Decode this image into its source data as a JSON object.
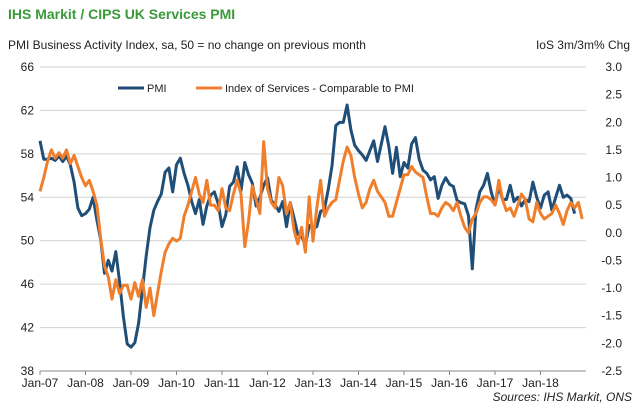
{
  "header": {
    "title": "IHS Markit / CIPS UK Services PMI",
    "left_axis_label": "PMI Business Activity Index, sa, 50 = no change on previous month",
    "right_axis_label": "IoS 3m/3m% Chg",
    "source": "Sources: IHS Markit, ONS"
  },
  "chart_data": {
    "type": "line",
    "x_ticks": [
      "Jan-07",
      "Jan-08",
      "Jan-09",
      "Jan-10",
      "Jan-11",
      "Jan-12",
      "Jan-13",
      "Jan-14",
      "Jan-15",
      "Jan-16",
      "Jan-17",
      "Jan-18"
    ],
    "y_left": {
      "range": [
        38,
        66
      ],
      "ticks": [
        "38",
        "42",
        "46",
        "50",
        "54",
        "58",
        "62",
        "66"
      ]
    },
    "y_right": {
      "range": [
        -2.5,
        3.0
      ],
      "ticks": [
        "-2.5",
        "-2.0",
        "-1.5",
        "-1.0",
        "-0.5",
        "0.0",
        "0.5",
        "1.0",
        "1.5",
        "2.0",
        "2.5",
        "3.0"
      ]
    },
    "legend_position": "top-left",
    "grid": "horizontal",
    "series": [
      {
        "name": "PMI",
        "axis": "left",
        "color": "#1f4e79",
        "start": "Jan-07",
        "values": [
          59.2,
          57.5,
          57.5,
          57.6,
          57.4,
          57.8,
          57.3,
          57.8,
          57.0,
          55.4,
          53.0,
          52.3,
          52.5,
          52.9,
          54.0,
          51.9,
          50.1,
          47.0,
          48.2,
          47.2,
          49.0,
          46.2,
          43.0,
          40.5,
          40.2,
          40.6,
          42.4,
          45.5,
          48.6,
          51.2,
          52.8,
          53.6,
          54.3,
          56.3,
          56.7,
          54.5,
          57.0,
          57.6,
          56.2,
          55.1,
          53.6,
          52.5,
          53.8,
          51.5,
          53.2,
          54.2,
          54.5,
          53.4,
          51.3,
          52.4,
          55.0,
          55.4,
          56.8,
          54.6,
          57.2,
          56.1,
          55.3,
          53.2,
          54.0,
          55.1,
          55.8,
          53.7,
          53.3,
          52.7,
          53.6,
          51.3,
          53.5,
          52.1,
          50.6,
          50.4,
          49.6,
          51.4,
          51.1,
          51.3,
          52.7,
          52.9,
          54.7,
          56.9,
          60.6,
          60.9,
          60.9,
          62.5,
          60.2,
          58.8,
          58.3,
          57.9,
          57.4,
          58.3,
          59.2,
          57.3,
          58.9,
          60.5,
          58.7,
          56.2,
          58.6,
          55.9,
          57.2,
          56.7,
          58.9,
          59.5,
          57.5,
          56.5,
          56.2,
          55.6,
          55.9,
          53.9,
          55.1,
          55.8,
          55.2,
          55.0,
          53.7,
          53.5,
          53.4,
          52.3,
          47.4,
          52.9,
          54.5,
          55.1,
          56.2,
          54.5,
          53.3,
          55.0,
          53.8,
          53.8,
          55.1,
          53.6,
          54.0,
          53.2,
          53.8,
          53.6,
          55.4,
          54.0,
          53.0,
          54.2,
          54.5,
          52.8,
          54.0,
          55.1,
          54.0,
          54.2,
          53.9,
          52.5
        ]
      },
      {
        "name": "Index of Services - Comparable to PMI",
        "axis": "right",
        "color": "#f07f2d",
        "start": "Jan-07",
        "values": [
          0.75,
          1.0,
          1.3,
          1.5,
          1.35,
          1.45,
          1.35,
          1.5,
          1.25,
          1.4,
          1.2,
          1.0,
          0.85,
          0.95,
          0.75,
          0.5,
          -0.1,
          -0.6,
          -0.8,
          -1.2,
          -0.85,
          -1.1,
          -0.95,
          -0.95,
          -1.2,
          -0.9,
          -1.15,
          -0.85,
          -1.35,
          -1.0,
          -1.5,
          -1.1,
          -0.7,
          -0.35,
          -0.2,
          -0.1,
          -0.15,
          -0.1,
          0.3,
          0.5,
          0.75,
          1.0,
          0.7,
          0.55,
          0.95,
          0.5,
          0.5,
          0.4,
          0.8,
          0.45,
          0.4,
          0.7,
          0.95,
          0.7,
          -0.25,
          0.2,
          0.85,
          0.6,
          0.35,
          1.65,
          0.8,
          0.55,
          0.45,
          1.0,
          0.85,
          0.35,
          0.55,
          0.05,
          -0.2,
          0.1,
          -0.35,
          0.65,
          -0.15,
          0.45,
          0.95,
          0.3,
          0.45,
          0.55,
          0.6,
          0.95,
          1.3,
          1.55,
          1.4,
          1.0,
          0.7,
          0.45,
          0.55,
          0.8,
          0.95,
          0.75,
          0.65,
          0.55,
          0.3,
          0.3,
          0.55,
          0.8,
          1.05,
          1.05,
          1.2,
          1.1,
          1.05,
          1.0,
          0.65,
          0.35,
          0.35,
          0.3,
          0.45,
          0.55,
          0.5,
          0.4,
          0.55,
          0.3,
          0.1,
          0.0,
          0.25,
          0.35,
          0.55,
          0.65,
          0.65,
          0.6,
          0.5,
          0.95,
          0.6,
          0.4,
          0.45,
          0.3,
          0.5,
          0.7,
          0.6,
          0.25,
          0.2,
          0.55,
          0.35,
          0.25,
          0.3,
          0.35,
          0.5,
          0.35,
          0.15,
          0.4,
          0.55,
          0.45,
          0.55,
          0.25
        ]
      }
    ]
  }
}
